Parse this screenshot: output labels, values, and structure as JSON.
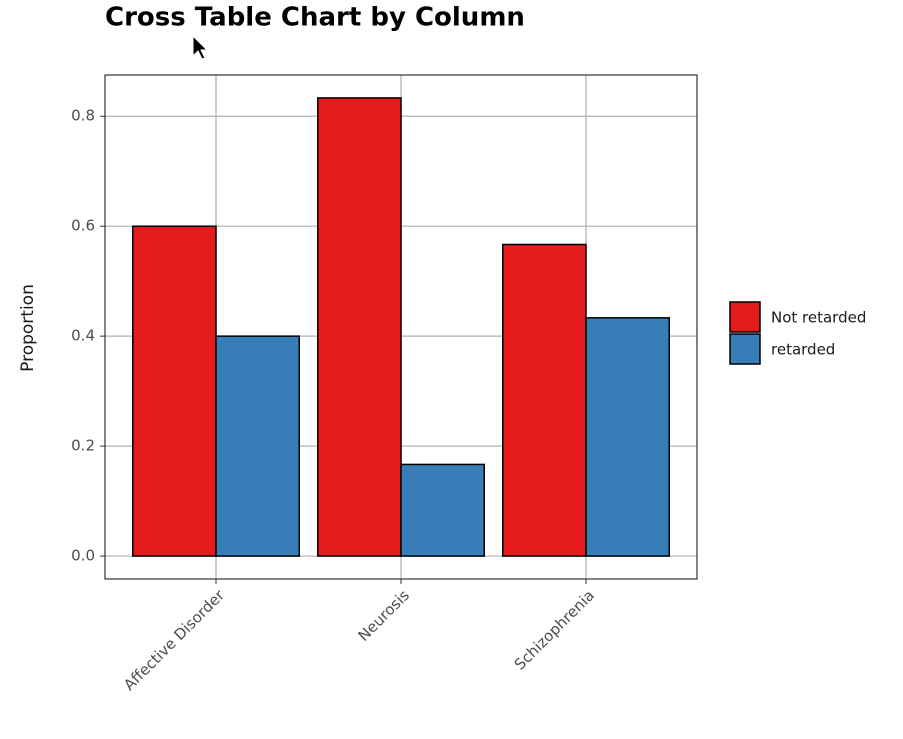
{
  "chart_data": {
    "type": "bar",
    "title": "Cross Table Chart by Column",
    "y_label": "Proportion",
    "categories": [
      "Affective Disorder",
      "Neurosis",
      "Schizophrenia"
    ],
    "series": [
      {
        "name": "Not retarded",
        "color": "#e41a1c",
        "values": [
          0.6,
          0.8333,
          0.5667
        ]
      },
      {
        "name": "retarded",
        "color": "#377eb8",
        "values": [
          0.4,
          0.1667,
          0.4333
        ]
      }
    ],
    "ylim": [
      -0.0417,
      0.875
    ],
    "yticks": [
      {
        "value": 0,
        "label": "0.0"
      },
      0.2,
      0.4,
      0.6,
      0.8
    ],
    "grid": true,
    "legend": "right"
  }
}
